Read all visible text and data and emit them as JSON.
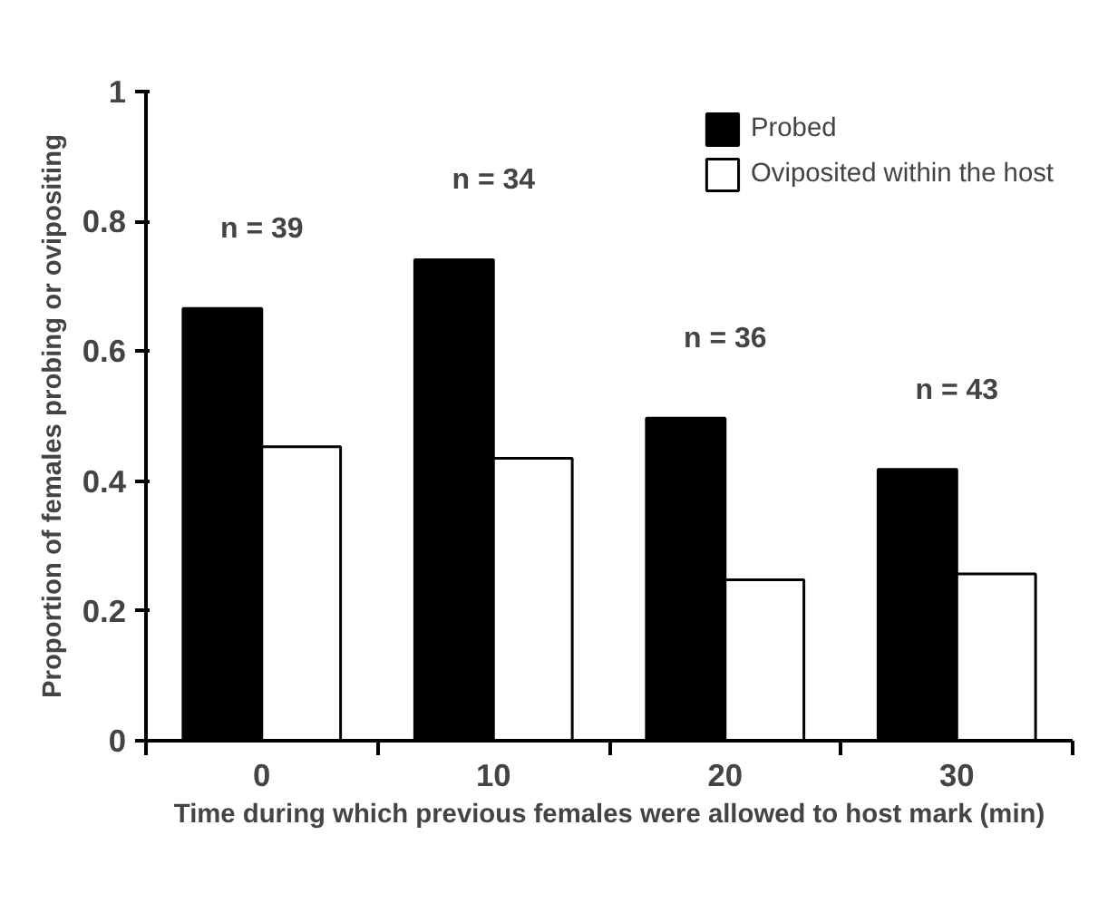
{
  "chart_data": {
    "type": "bar",
    "xlabel": "Time during which previous females were allowed to host mark (min)",
    "ylabel": "Proportion of females probing or ovipositing",
    "categories": [
      "0",
      "10",
      "20",
      "30"
    ],
    "series": [
      {
        "name": "Probed",
        "color": "#000000",
        "values": [
          0.666,
          0.741,
          0.497,
          0.418
        ]
      },
      {
        "name": "Oviposited within the host",
        "color": "#ffffff",
        "values": [
          0.453,
          0.435,
          0.248,
          0.257
        ]
      }
    ],
    "ylim": [
      0,
      1
    ],
    "yticks": [
      0,
      0.2,
      0.4,
      0.6,
      0.8,
      1
    ],
    "annotations": [
      "n = 39",
      "n = 34",
      "n = 36",
      "n = 43"
    ],
    "legend": "top right",
    "grid": false
  }
}
